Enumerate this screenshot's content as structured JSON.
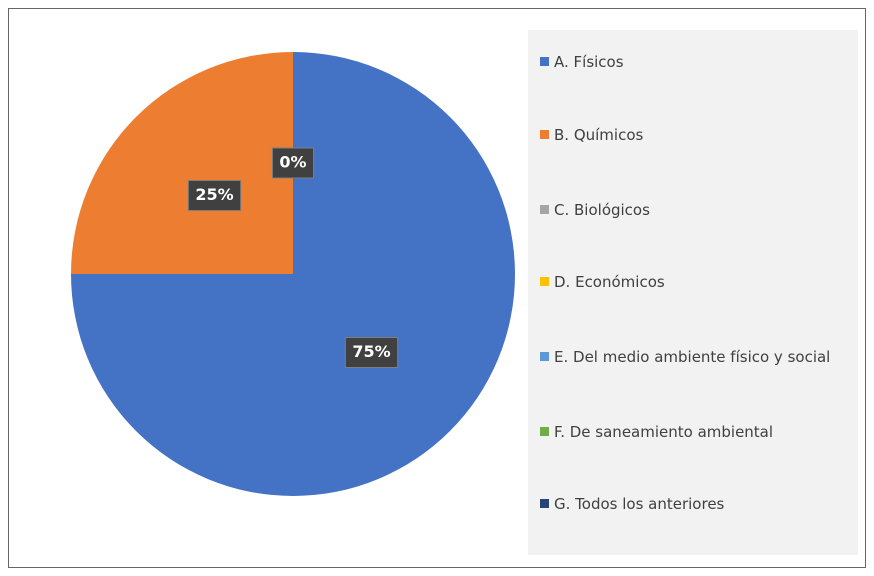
{
  "chart_data": {
    "type": "pie",
    "categories": [
      "A. Físicos",
      "B. Químicos",
      "C. Biológicos",
      "D. Económicos",
      "E. Del medio ambiente físico y social",
      "F. De saneamiento ambiental",
      "G. Todos los anteriores"
    ],
    "values": [
      75,
      25,
      0,
      0,
      0,
      0,
      0
    ],
    "value_labels": [
      "75%",
      "25%",
      "0%",
      null,
      null,
      null,
      null
    ],
    "colors": [
      "#4472c4",
      "#ed7d31",
      "#a5a5a5",
      "#ffc000",
      "#5b9bd5",
      "#70ad47",
      "#264478"
    ],
    "legend": "right"
  }
}
